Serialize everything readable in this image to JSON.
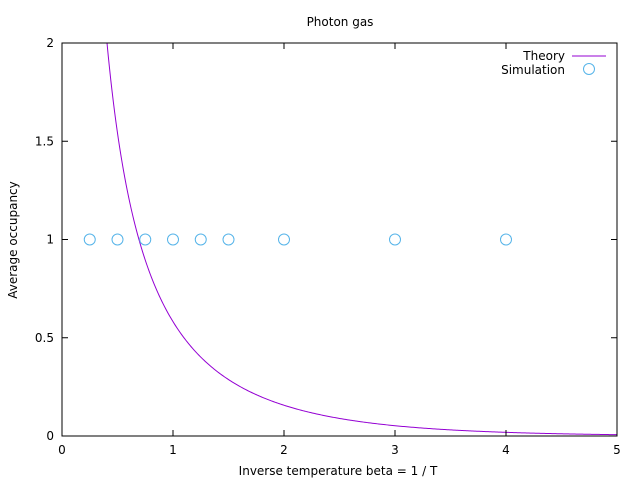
{
  "chart_data": {
    "type": "scatter",
    "title": "Photon gas",
    "xlabel": "Inverse temperature beta = 1 / T",
    "ylabel": "Average occupancy",
    "xlim": [
      0,
      5
    ],
    "ylim": [
      0,
      2
    ],
    "x_ticks": [
      0,
      1,
      2,
      3,
      4,
      5
    ],
    "x_tick_labels": [
      "0",
      "1",
      "2",
      "3",
      "4",
      "5"
    ],
    "y_ticks": [
      0,
      0.5,
      1,
      1.5,
      2
    ],
    "y_tick_labels": [
      "0",
      "0.5",
      "1",
      "1.5",
      "2"
    ],
    "grid": false,
    "legend_position": "top-right",
    "series": [
      {
        "name": "Theory",
        "kind": "line",
        "formula": "1 / (exp(beta) - 1)",
        "color": "#9400d3"
      },
      {
        "name": "Simulation",
        "kind": "points",
        "marker": "open-circle",
        "color": "#56b4e9",
        "x": [
          0.25,
          0.5,
          0.75,
          1.0,
          1.25,
          1.5,
          2.0,
          3.0,
          4.0
        ],
        "y": [
          1,
          1,
          1,
          1,
          1,
          1,
          1,
          1,
          1
        ]
      }
    ]
  }
}
